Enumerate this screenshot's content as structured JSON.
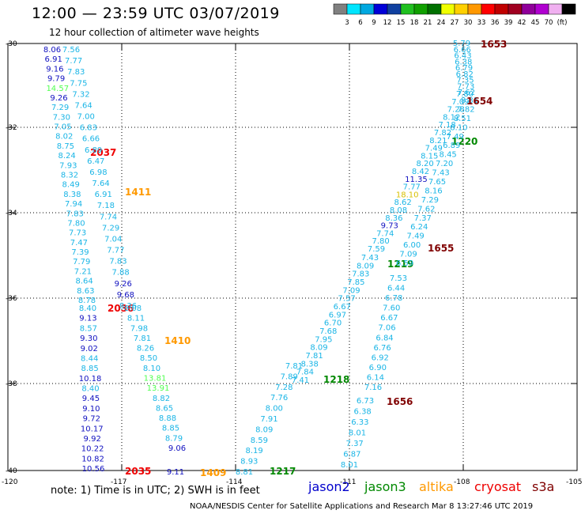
{
  "header": {
    "title": "12:00 — 23:59 UTC 03/07/2019",
    "subtitle": "12 hour collection of altimeter wave heights"
  },
  "colorbar": {
    "colors": [
      "#808080",
      "#00e5ff",
      "#00a8e0",
      "#0000d8",
      "#1040a0",
      "#20c020",
      "#10a000",
      "#007000",
      "#f0ff00",
      "#ffd000",
      "#ff9800",
      "#ff0000",
      "#c00000",
      "#a00020",
      "#90009a",
      "#b000d0",
      "#f0b0f0",
      "#000000"
    ],
    "labels": [
      "3",
      "6",
      "9",
      "12",
      "15",
      "18",
      "21",
      "24",
      "27",
      "30",
      "33",
      "36",
      "39",
      "42",
      "45",
      "70",
      "(ft)"
    ]
  },
  "axes": {
    "lon_labels": [
      "-120",
      "-117",
      "-114",
      "-111",
      "-108",
      "-105"
    ],
    "lat_labels": [
      "-30",
      "-32",
      "-34",
      "-36",
      "-38",
      "-40"
    ]
  },
  "track_colors": {
    "cyan": "#1ab5e6",
    "blue": "#1010c0",
    "lightgreen": "#50ff50",
    "red": "#ee0000",
    "orange": "#ff9900",
    "green": "#008800",
    "darkred": "#800000",
    "yellow": "#d8c000"
  },
  "tracks": [
    {
      "time": "2037",
      "time_color": "red",
      "values": [
        {
          "v": "8.06",
          "c": "blue"
        },
        {
          "v": "6.91",
          "c": "blue"
        },
        {
          "v": "9.16",
          "c": "blue"
        },
        {
          "v": "9.79",
          "c": "blue"
        },
        {
          "v": "14.57",
          "c": "lightgreen"
        },
        {
          "v": "9.26",
          "c": "blue"
        },
        {
          "v": "7.29",
          "c": "cyan"
        },
        {
          "v": "7.30",
          "c": "cyan"
        },
        {
          "v": "7.05",
          "c": "cyan"
        },
        {
          "v": "8.02",
          "c": "cyan"
        },
        {
          "v": "8.75",
          "c": "cyan"
        },
        {
          "v": "8.24",
          "c": "cyan"
        },
        {
          "v": "7.93",
          "c": "cyan"
        },
        {
          "v": "8.32",
          "c": "cyan"
        },
        {
          "v": "8.49",
          "c": "cyan"
        },
        {
          "v": "8.38",
          "c": "cyan"
        },
        {
          "v": "7.94",
          "c": "cyan"
        },
        {
          "v": "7.83",
          "c": "cyan"
        },
        {
          "v": "7.80",
          "c": "cyan"
        },
        {
          "v": "7.73",
          "c": "cyan"
        },
        {
          "v": "7.47",
          "c": "cyan"
        },
        {
          "v": "7.39",
          "c": "cyan"
        },
        {
          "v": "7.79",
          "c": "cyan"
        },
        {
          "v": "7.21",
          "c": "cyan"
        },
        {
          "v": "8.64",
          "c": "cyan"
        },
        {
          "v": "8.63",
          "c": "cyan"
        },
        {
          "v": "8.78",
          "c": "cyan"
        }
      ]
    },
    {
      "time": "2036",
      "time_color": "red",
      "values": [
        {
          "v": "8.40",
          "c": "cyan"
        },
        {
          "v": "9.13",
          "c": "blue"
        },
        {
          "v": "8.57",
          "c": "cyan"
        },
        {
          "v": "9.30",
          "c": "blue"
        },
        {
          "v": "9.02",
          "c": "blue"
        },
        {
          "v": "8.44",
          "c": "cyan"
        },
        {
          "v": "8.85",
          "c": "cyan"
        },
        {
          "v": "10.18",
          "c": "blue"
        },
        {
          "v": "8.40",
          "c": "cyan"
        },
        {
          "v": "9.45",
          "c": "blue"
        },
        {
          "v": "9.10",
          "c": "blue"
        },
        {
          "v": "9.72",
          "c": "blue"
        },
        {
          "v": "10.17",
          "c": "blue"
        },
        {
          "v": "9.92",
          "c": "blue"
        },
        {
          "v": "10.22",
          "c": "blue"
        },
        {
          "v": "10.82",
          "c": "blue"
        },
        {
          "v": "10.56",
          "c": "blue"
        }
      ]
    },
    {
      "time": "2035",
      "time_color": "red",
      "values": []
    },
    {
      "time": "1411",
      "time_color": "orange",
      "values": [
        {
          "v": "7.56",
          "c": "cyan"
        },
        {
          "v": "7.77",
          "c": "cyan"
        },
        {
          "v": "7.83",
          "c": "cyan"
        },
        {
          "v": "7.75",
          "c": "cyan"
        },
        {
          "v": "7.32",
          "c": "cyan"
        },
        {
          "v": "7.64",
          "c": "cyan"
        },
        {
          "v": "7.00",
          "c": "cyan"
        },
        {
          "v": "6.83",
          "c": "cyan"
        },
        {
          "v": "6.66",
          "c": "cyan"
        },
        {
          "v": "6.89",
          "c": "cyan"
        },
        {
          "v": "6.47",
          "c": "cyan"
        },
        {
          "v": "6.98",
          "c": "cyan"
        },
        {
          "v": "7.64",
          "c": "cyan"
        },
        {
          "v": "6.91",
          "c": "cyan"
        },
        {
          "v": "7.18",
          "c": "cyan"
        },
        {
          "v": "7.74",
          "c": "cyan"
        },
        {
          "v": "7.29",
          "c": "cyan"
        },
        {
          "v": "7.04",
          "c": "cyan"
        },
        {
          "v": "7.77",
          "c": "cyan"
        },
        {
          "v": "7.83",
          "c": "cyan"
        },
        {
          "v": "7.88",
          "c": "cyan"
        },
        {
          "v": "9.26",
          "c": "blue"
        },
        {
          "v": "9.68",
          "c": "blue"
        },
        {
          "v": "8.36",
          "c": "cyan"
        }
      ]
    },
    {
      "time": "1410",
      "time_color": "orange",
      "values": [
        {
          "v": "8.08",
          "c": "cyan"
        },
        {
          "v": "8.11",
          "c": "cyan"
        },
        {
          "v": "7.98",
          "c": "cyan"
        },
        {
          "v": "7.81",
          "c": "cyan"
        },
        {
          "v": "8.26",
          "c": "cyan"
        },
        {
          "v": "8.50",
          "c": "cyan"
        },
        {
          "v": "8.10",
          "c": "cyan"
        },
        {
          "v": "13.81",
          "c": "lightgreen"
        },
        {
          "v": "13.91",
          "c": "lightgreen"
        },
        {
          "v": "8.82",
          "c": "cyan"
        },
        {
          "v": "8.65",
          "c": "cyan"
        },
        {
          "v": "8.88",
          "c": "cyan"
        },
        {
          "v": "8.85",
          "c": "cyan"
        },
        {
          "v": "8.79",
          "c": "cyan"
        },
        {
          "v": "9.06",
          "c": "blue"
        }
      ]
    },
    {
      "time": "1409",
      "time_color": "orange",
      "values": [
        {
          "v": "9.11",
          "c": "blue"
        }
      ]
    },
    {
      "time": "1217",
      "time_color": "green",
      "values": [
        {
          "v": "8.81",
          "c": "cyan"
        },
        {
          "v": "8.93",
          "c": "cyan"
        },
        {
          "v": "8.19",
          "c": "cyan"
        },
        {
          "v": "8.59",
          "c": "cyan"
        },
        {
          "v": "8.09",
          "c": "cyan"
        },
        {
          "v": "7.91",
          "c": "cyan"
        },
        {
          "v": "8.00",
          "c": "cyan"
        },
        {
          "v": "7.76",
          "c": "cyan"
        },
        {
          "v": "7.28",
          "c": "cyan"
        },
        {
          "v": "7.89",
          "c": "cyan"
        },
        {
          "v": "7.81",
          "c": "cyan"
        }
      ]
    },
    {
      "time": "1218",
      "time_color": "green",
      "values": [
        {
          "v": "7.41",
          "c": "cyan"
        },
        {
          "v": "7.84",
          "c": "cyan"
        },
        {
          "v": "8.38",
          "c": "cyan"
        },
        {
          "v": "7.81",
          "c": "cyan"
        },
        {
          "v": "8.09",
          "c": "cyan"
        },
        {
          "v": "7.95",
          "c": "cyan"
        },
        {
          "v": "7.68",
          "c": "cyan"
        },
        {
          "v": "6.70",
          "c": "cyan"
        },
        {
          "v": "6.97",
          "c": "cyan"
        },
        {
          "v": "6.67",
          "c": "cyan"
        },
        {
          "v": "7.57",
          "c": "cyan"
        },
        {
          "v": "7.09",
          "c": "cyan"
        },
        {
          "v": "7.85",
          "c": "cyan"
        },
        {
          "v": "7.83",
          "c": "cyan"
        },
        {
          "v": "8.09",
          "c": "cyan"
        },
        {
          "v": "7.43",
          "c": "cyan"
        }
      ]
    },
    {
      "time": "1219",
      "time_color": "green",
      "values": [
        {
          "v": "7.59",
          "c": "cyan"
        },
        {
          "v": "7.80",
          "c": "cyan"
        },
        {
          "v": "7.74",
          "c": "cyan"
        },
        {
          "v": "9.73",
          "c": "blue"
        },
        {
          "v": "8.36",
          "c": "cyan"
        },
        {
          "v": "8.08",
          "c": "cyan"
        },
        {
          "v": "8.62",
          "c": "cyan"
        },
        {
          "v": "18.10",
          "c": "yellow"
        },
        {
          "v": "7.77",
          "c": "cyan"
        },
        {
          "v": "11.35",
          "c": "blue"
        },
        {
          "v": "8.42",
          "c": "cyan"
        },
        {
          "v": "8.20",
          "c": "cyan"
        },
        {
          "v": "8.15",
          "c": "cyan"
        },
        {
          "v": "7.49",
          "c": "cyan"
        },
        {
          "v": "8.21",
          "c": "cyan"
        },
        {
          "v": "7.82",
          "c": "cyan"
        },
        {
          "v": "7.18",
          "c": "cyan"
        },
        {
          "v": "8.12",
          "c": "cyan"
        },
        {
          "v": "7.28",
          "c": "cyan"
        },
        {
          "v": "7.09",
          "c": "cyan"
        },
        {
          "v": "7.80",
          "c": "cyan"
        }
      ]
    },
    {
      "time": "1220",
      "time_color": "green",
      "values": []
    },
    {
      "time": "1653",
      "time_color": "darkred",
      "values": [
        {
          "v": "5.79",
          "c": "cyan"
        },
        {
          "v": "6.66",
          "c": "cyan"
        },
        {
          "v": "6.43",
          "c": "cyan"
        },
        {
          "v": "6.38",
          "c": "cyan"
        },
        {
          "v": "6.79",
          "c": "cyan"
        },
        {
          "v": "6.82",
          "c": "cyan"
        },
        {
          "v": "7.35",
          "c": "cyan"
        },
        {
          "v": "7.73",
          "c": "cyan"
        },
        {
          "v": "7.62",
          "c": "cyan"
        }
      ]
    },
    {
      "time": "1654",
      "time_color": "darkred",
      "values": [
        {
          "v": "8.81",
          "c": "cyan"
        },
        {
          "v": "7.82",
          "c": "cyan"
        },
        {
          "v": "8.51",
          "c": "cyan"
        },
        {
          "v": "8.10",
          "c": "cyan"
        },
        {
          "v": "7.49",
          "c": "cyan"
        },
        {
          "v": "6.89",
          "c": "cyan"
        },
        {
          "v": "8.45",
          "c": "cyan"
        },
        {
          "v": "7.20",
          "c": "cyan"
        },
        {
          "v": "7.43",
          "c": "cyan"
        },
        {
          "v": "7.65",
          "c": "cyan"
        },
        {
          "v": "8.16",
          "c": "cyan"
        },
        {
          "v": "7.29",
          "c": "cyan"
        },
        {
          "v": "7.62",
          "c": "cyan"
        },
        {
          "v": "7.37",
          "c": "cyan"
        },
        {
          "v": "6.24",
          "c": "cyan"
        },
        {
          "v": "7.49",
          "c": "cyan"
        },
        {
          "v": "6.00",
          "c": "cyan"
        },
        {
          "v": "7.09",
          "c": "cyan"
        },
        {
          "v": "6.59",
          "c": "cyan"
        }
      ]
    },
    {
      "time": "1655",
      "time_color": "darkred",
      "values": [
        {
          "v": "7.53",
          "c": "cyan"
        },
        {
          "v": "6.44",
          "c": "cyan"
        },
        {
          "v": "6.78",
          "c": "cyan"
        },
        {
          "v": "7.60",
          "c": "cyan"
        },
        {
          "v": "6.67",
          "c": "cyan"
        },
        {
          "v": "7.06",
          "c": "cyan"
        },
        {
          "v": "6.84",
          "c": "cyan"
        },
        {
          "v": "6.76",
          "c": "cyan"
        },
        {
          "v": "6.92",
          "c": "cyan"
        },
        {
          "v": "6.90",
          "c": "cyan"
        },
        {
          "v": "6.14",
          "c": "cyan"
        },
        {
          "v": "7.16",
          "c": "cyan"
        }
      ]
    },
    {
      "time": "1656",
      "time_color": "darkred",
      "values": [
        {
          "v": "6.73",
          "c": "cyan"
        },
        {
          "v": "6.38",
          "c": "cyan"
        },
        {
          "v": "6.33",
          "c": "cyan"
        },
        {
          "v": "8.01",
          "c": "cyan"
        },
        {
          "v": "7.37",
          "c": "cyan"
        },
        {
          "v": "6.87",
          "c": "cyan"
        },
        {
          "v": "8.01",
          "c": "cyan"
        }
      ]
    }
  ],
  "footer": {
    "note": "note: 1) Time is in UTC; 2) SWH is in feet",
    "satellites": [
      {
        "label": "jason2",
        "color": "#0000cc"
      },
      {
        "label": "jason3",
        "color": "#008800"
      },
      {
        "label": "altika",
        "color": "#ff9900"
      },
      {
        "label": "cryosat",
        "color": "#ee0000"
      },
      {
        "label": "s3a",
        "color": "#800000"
      }
    ],
    "credit": "NOAA/NESDIS Center for Satellite Applications and Research     Mar  8 13:27:46 UTC 2019"
  }
}
